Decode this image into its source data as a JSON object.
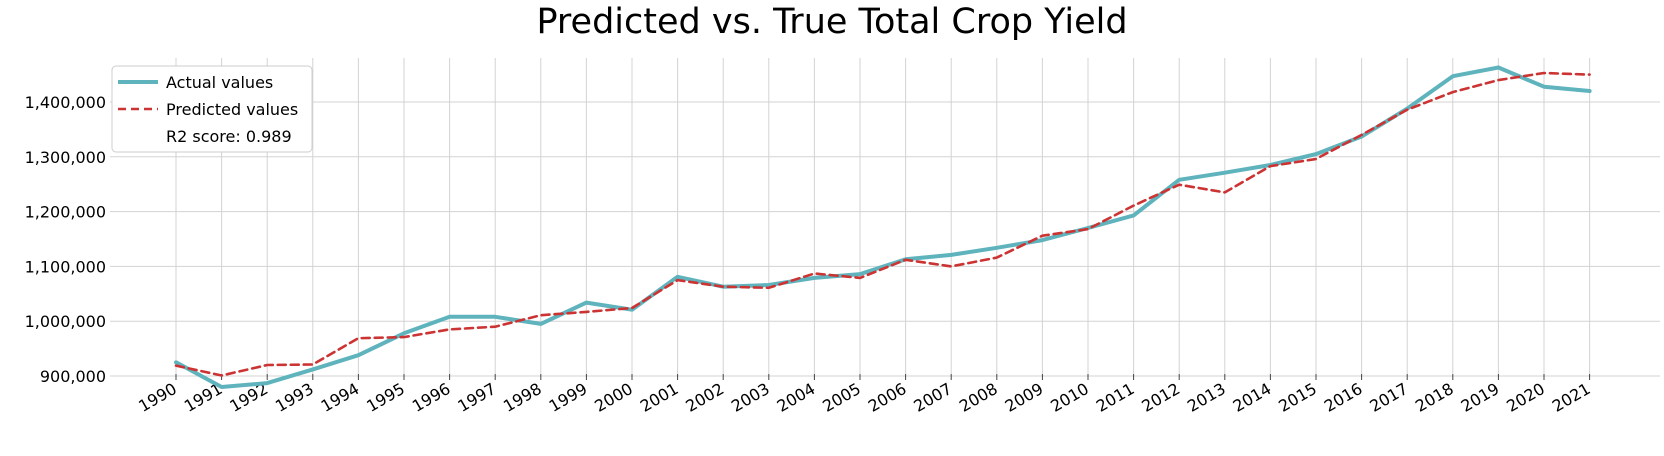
{
  "chart_data": {
    "type": "line",
    "title": "Predicted vs. True Total Crop Yield",
    "xlabel": "",
    "ylabel": "",
    "x": [
      "1990",
      "1991",
      "1992",
      "1993",
      "1994",
      "1995",
      "1996",
      "1997",
      "1998",
      "1999",
      "2000",
      "2001",
      "2002",
      "2003",
      "2004",
      "2005",
      "2006",
      "2007",
      "2008",
      "2009",
      "2010",
      "2011",
      "2012",
      "2013",
      "2014",
      "2015",
      "2016",
      "2017",
      "2018",
      "2019",
      "2020",
      "2021"
    ],
    "yticks": [
      900000,
      1000000,
      1100000,
      1200000,
      1300000,
      1400000
    ],
    "ytick_labels": [
      "900,000",
      "1,000,000",
      "1,100,000",
      "1,200,000",
      "1,300,000",
      "1,400,000"
    ],
    "ylim": [
      860000,
      1490000
    ],
    "grid": true,
    "legend_position": "top-left",
    "annotation": "R2 score: 0.989",
    "series": [
      {
        "name": "Actual values",
        "color": "#5fb3bd",
        "style": "solid",
        "values": [
          925000,
          880000,
          887000,
          912000,
          938000,
          978000,
          1008000,
          1008000,
          995000,
          1034000,
          1021000,
          1081000,
          1063000,
          1066000,
          1079000,
          1086000,
          1113000,
          1121000,
          1134000,
          1148000,
          1170000,
          1193000,
          1258000,
          1271000,
          1285000,
          1305000,
          1337000,
          1388000,
          1447000,
          1463000,
          1428000,
          1420000
        ]
      },
      {
        "name": "Predicted values",
        "color": "#cc3333",
        "style": "dashed",
        "values": [
          919000,
          901000,
          920000,
          921000,
          969000,
          971000,
          985000,
          990000,
          1011000,
          1017000,
          1024000,
          1075000,
          1063000,
          1061000,
          1087000,
          1079000,
          1112000,
          1100000,
          1116000,
          1156000,
          1168000,
          1211000,
          1249000,
          1235000,
          1283000,
          1296000,
          1340000,
          1386000,
          1418000,
          1440000,
          1453000,
          1450000
        ]
      }
    ]
  }
}
